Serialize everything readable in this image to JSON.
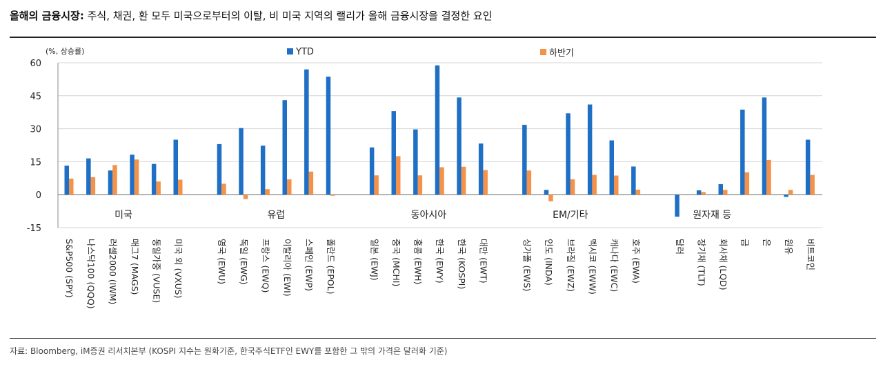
{
  "title_bold": "올해의 금융시장:",
  "title_rest": " 주식, 채권, 환 모두 미국으로부터의 이탈, 비 미국 지역의 랠리가 올해 금융시장을 결정한 요인",
  "source": "자료: Bloomberg, iM증권 리서치본부 (KOSPI 지수는 원화기준, 한국주식ETF인 EWY를 포함한 그 밖의 가격은 달러화 기준)",
  "chart_data": {
    "type": "bar",
    "unit_label": "(%, 상승률)",
    "yticks": [
      "60",
      "45",
      "30",
      "15",
      "0",
      "-15"
    ],
    "ylim": [
      -15,
      60
    ],
    "grid": true,
    "legend_position": "top",
    "groups": [
      {
        "label": "미국",
        "start": 0,
        "end": 5
      },
      {
        "label": "유럽",
        "start": 6,
        "end": 11
      },
      {
        "label": "동아시아",
        "start": 12,
        "end": 17
      },
      {
        "label": "EM/기타",
        "start": 18,
        "end": 22
      },
      {
        "label": "원자재 등",
        "start": 23,
        "end": 29
      }
    ],
    "categories": [
      "S&P500 (SPY)",
      "나스닥100 (QQQ)",
      "러셀2000 (IWM)",
      "매그7 (MAGS)",
      "동일가중 (VUSE)",
      "미국 외 (VXUS)",
      "영국 (EWU)",
      "독일 (EWG)",
      "프랑스 (EWQ)",
      "이탈리아 (EWI)",
      "스페인 (EWP)",
      "폴란드 (EPOL)",
      "일본 (EWJ)",
      "중국 (MCHI)",
      "홍콩 (EWH)",
      "한국 (EWY)",
      "한국 (KOSPI)",
      "대만 (EWT)",
      "싱가폴 (EWS)",
      "인도 (INDA)",
      "브라질 (EWZ)",
      "멕시코 (EWW)",
      "캐나다 (EWC)",
      "호주 (EWA)",
      "달러",
      "장기채 (TLT)",
      "회사채 (LQD)",
      "금",
      "은",
      "원유",
      "비트코인"
    ],
    "slots": [
      0,
      1,
      2,
      3,
      4,
      5,
      7,
      8,
      9,
      10,
      11,
      12,
      14,
      15,
      16,
      17,
      18,
      19,
      21,
      22,
      23,
      24,
      25,
      26,
      28,
      29,
      30,
      31,
      32,
      33,
      34
    ],
    "series": [
      {
        "name": "YTD",
        "color": "#1f6fc5",
        "values": [
          13.2,
          16.5,
          11.0,
          18.2,
          14.0,
          25.0,
          23.0,
          30.3,
          22.3,
          43.0,
          57.0,
          53.7,
          21.5,
          38.0,
          29.7,
          58.8,
          44.2,
          23.3,
          31.8,
          2.2,
          37.0,
          41.0,
          24.7,
          12.8,
          -10.0,
          2.0,
          4.8,
          38.7,
          44.2,
          -1.0,
          25.0
        ]
      },
      {
        "name": "하반기",
        "color": "#f5924a",
        "values": [
          7.3,
          8.0,
          13.5,
          16.0,
          6.0,
          6.8,
          5.0,
          -2.0,
          2.5,
          7.0,
          10.5,
          -0.5,
          8.8,
          17.5,
          8.8,
          12.5,
          12.7,
          11.2,
          11.0,
          -3.0,
          7.0,
          9.0,
          8.7,
          2.3,
          0,
          1.2,
          2.2,
          10.2,
          15.8,
          2.2,
          9.0
        ]
      }
    ]
  }
}
